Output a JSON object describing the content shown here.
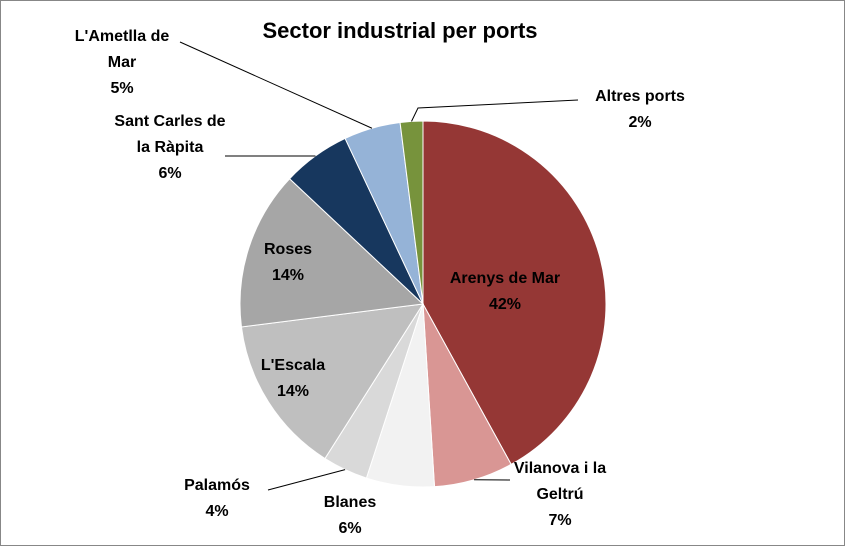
{
  "chart_data": {
    "type": "pie",
    "title": "Sector industrial per ports",
    "categories": [
      "Arenys de Mar",
      "Vilanova i la Geltrú",
      "Blanes",
      "Palamós",
      "L'Escala",
      "Roses",
      "Sant Carles de la Ràpita",
      "L'Ametlla de Mar",
      "Altres ports"
    ],
    "values": [
      42,
      7,
      6,
      4,
      14,
      14,
      6,
      5,
      2
    ],
    "value_labels": [
      "42%",
      "7%",
      "6%",
      "4%",
      "14%",
      "14%",
      "6%",
      "5%",
      "2%"
    ],
    "colors": [
      "#953735",
      "#d99694",
      "#f2f2f2",
      "#d9d9d9",
      "#bfbfbf",
      "#a6a6a6",
      "#17375e",
      "#95b3d7",
      "#77933c"
    ]
  }
}
